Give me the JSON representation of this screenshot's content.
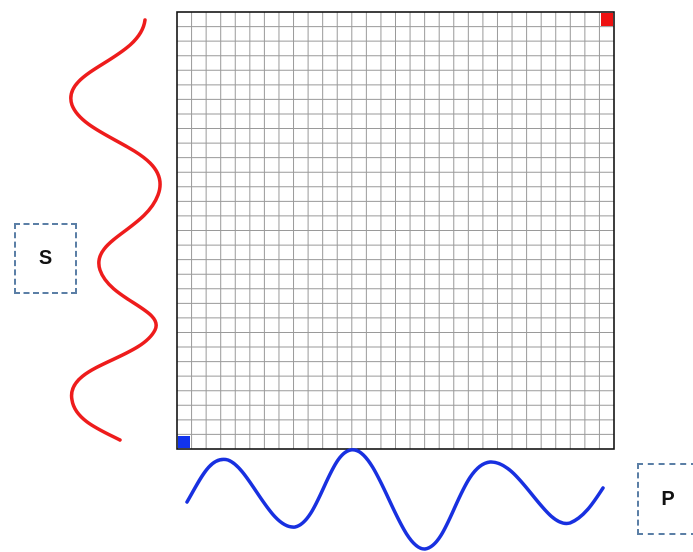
{
  "labels": {
    "s": "S",
    "p": "P"
  },
  "grid": {
    "rows": 30,
    "cols": 30
  },
  "markers": {
    "top_right": {
      "color": "#ee1111"
    },
    "bottom_left": {
      "color": "#1133ee"
    }
  },
  "colors": {
    "grid_line": "#9a9a9a",
    "grid_border": "#111111",
    "s_wave": "#ee1c1c",
    "p_wave": "#1830e0",
    "label_border": "#5b7fa6"
  }
}
